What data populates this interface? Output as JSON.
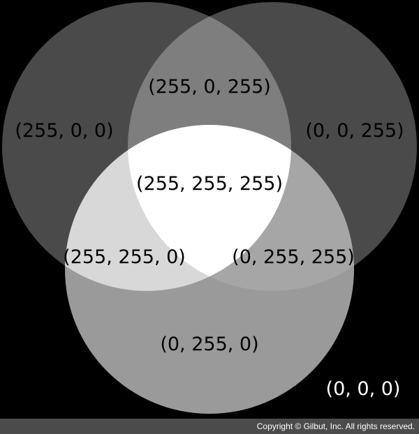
{
  "diagram": {
    "regions": {
      "red_only": "(255, 0, 0)",
      "blue_only": "(0, 0, 255)",
      "red_blue": "(255, 0, 255)",
      "all_three": "(255, 255, 255)",
      "red_green": "(255, 255, 0)",
      "green_blue": "(0, 255, 255)",
      "green_only": "(0, 255, 0)",
      "background": "(0, 0, 0)"
    },
    "colors": {
      "background": "#000000",
      "red_only": "#4a4a4a",
      "blue_only": "#4a4a4a",
      "green_only": "#9a9a9a",
      "red_blue": "#7e7e7e",
      "red_green": "#d8d8d8",
      "green_blue": "#a6a6a6",
      "all_three": "#ffffff",
      "label_dark_text": "#000000",
      "label_light_text": "#ffffff"
    }
  },
  "footer": {
    "copyright": "Copyright © Gilbut, Inc. All rights reserved."
  }
}
